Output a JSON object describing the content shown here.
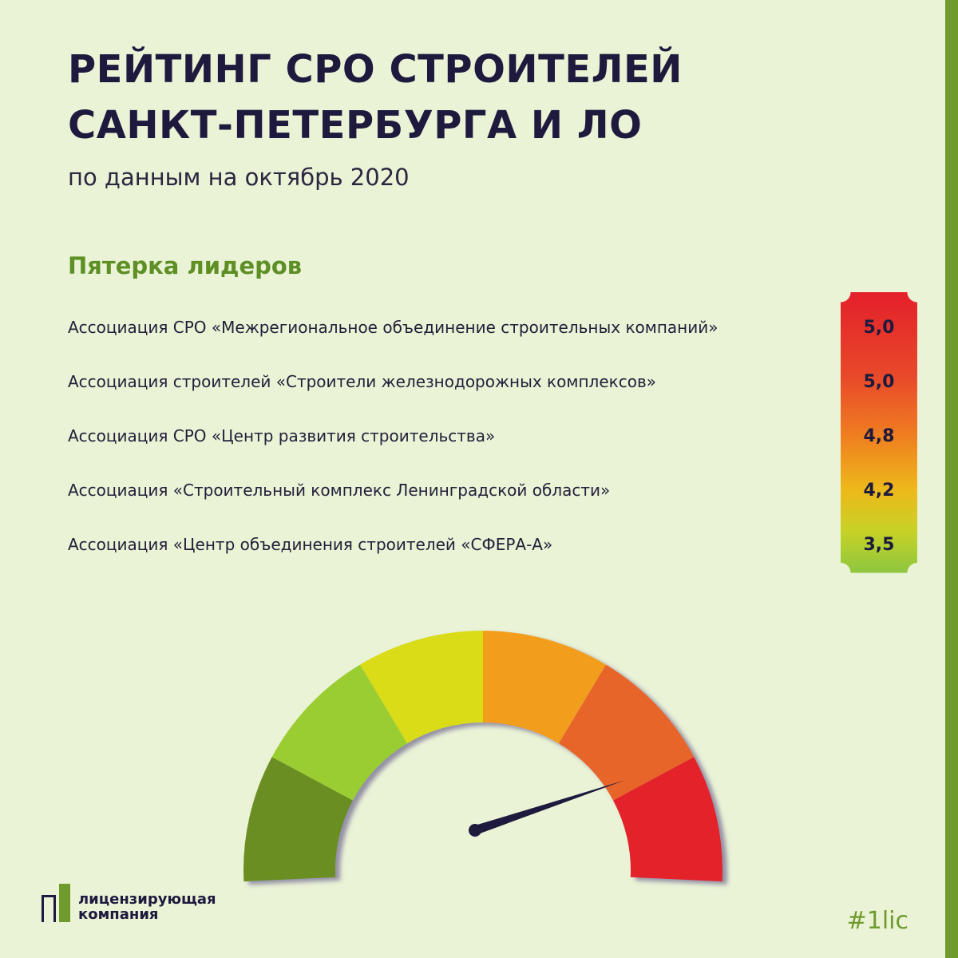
{
  "header": {
    "title_line1": "РЕЙТИНГ СРО СТРОИТЕЛЕЙ",
    "title_line2": "САНКТ-ПЕТЕРБУРГА И ЛО",
    "subtitle": "по данным на октябрь 2020"
  },
  "section_title": "Пятерка лидеров",
  "chart_data": {
    "type": "table",
    "title": "РЕЙТИНГ СРО СТРОИТЕЛЕЙ САНКТ-ПЕТЕРБУРГА И ЛО",
    "subtitle": "по данным на октябрь 2020",
    "categories": [
      "Ассоциация СРО «Межрегиональное объединение строительных компаний»",
      "Ассоциация строителей «Строители железнодорожных комплексов»",
      "Ассоциация СРО «Центр развития строительства»",
      "Ассоциация «Строительный комплекс Ленинградской области»",
      "Ассоциация «Центр объединения строителей «СФЕРА-А»"
    ],
    "values": [
      5.0,
      5.0,
      4.8,
      4.2,
      3.5
    ],
    "value_labels": [
      "5,0",
      "5,0",
      "4,8",
      "4,2",
      "3,5"
    ],
    "score_gradient": [
      "#e3202a",
      "#ef7b21",
      "#eeb81a",
      "#8dc63f"
    ]
  },
  "gauge": {
    "segment_colors": [
      "#6b8e23",
      "#9acd32",
      "#d9dc14",
      "#f29e1a",
      "#e8652a",
      "#e3202a"
    ],
    "needle_level": 0.82,
    "needle_color": "#1d1a3e"
  },
  "footer": {
    "logo_line1": "лицензирующая",
    "logo_line2": "компания",
    "hashtag": "#1lic"
  },
  "colors": {
    "background": "#eaf3d6",
    "title": "#1d1a3e",
    "accent_green": "#5e8f24",
    "stripe": "#6f9a2c"
  }
}
